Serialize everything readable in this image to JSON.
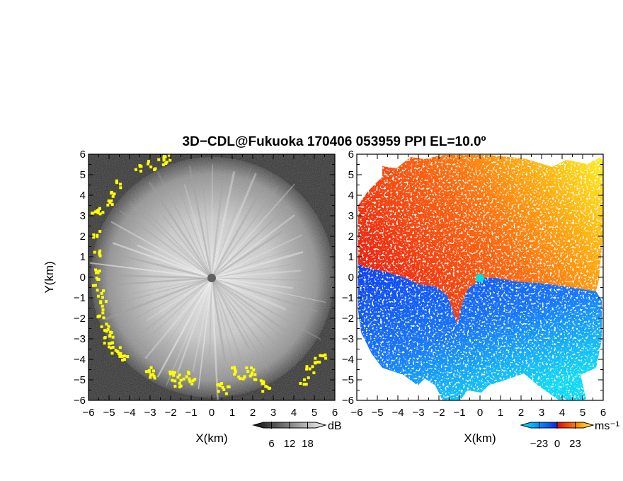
{
  "chart_data": {
    "type": "heatmap",
    "title": "3D−CDL@Fukuoka 170406 053959 PPI EL=10.0º",
    "panels": [
      {
        "name": "snr",
        "xlabel": "X(km)",
        "ylabel": "Y(km)",
        "xlim": [
          -6,
          6
        ],
        "ylim": [
          -6,
          6
        ],
        "xticks": [
          "−6",
          "−5",
          "−4",
          "−3",
          "−2",
          "−1",
          "0",
          "1",
          "2",
          "3",
          "4",
          "5",
          "6"
        ],
        "yticks": [
          "−6",
          "−5",
          "−4",
          "−3",
          "−2",
          "−1",
          "0",
          "1",
          "2",
          "3",
          "4",
          "5",
          "6"
        ],
        "colormap": "grayscale",
        "colorbar": {
          "ticks": [
            "6",
            "12",
            "18"
          ],
          "tick_values": [
            6,
            12,
            18
          ],
          "range": [
            0,
            24
          ],
          "unit": "dB"
        },
        "highlight_color": "#ffff00",
        "center_marker_color": "#606060"
      },
      {
        "name": "velocity",
        "xlabel": "X(km)",
        "ylabel": "",
        "xlim": [
          -6,
          6
        ],
        "ylim": [
          -6,
          6
        ],
        "xticks": [
          "−6",
          "−5",
          "−4",
          "−3",
          "−2",
          "−1",
          "0",
          "1",
          "2",
          "3",
          "4",
          "5",
          "6"
        ],
        "yticks": [
          "−6",
          "−5",
          "−4",
          "−3",
          "−2",
          "−1",
          "0",
          "1",
          "2",
          "3",
          "4",
          "5",
          "6"
        ],
        "colormap": "cyan-blue-red-yellow",
        "colorbar": {
          "ticks": [
            "−23",
            "0",
            "23"
          ],
          "tick_values": [
            -23,
            0,
            23
          ],
          "range": [
            -46,
            46
          ],
          "unit": "ms⁻¹"
        },
        "center_marker_color": "#00e0e0"
      }
    ]
  }
}
